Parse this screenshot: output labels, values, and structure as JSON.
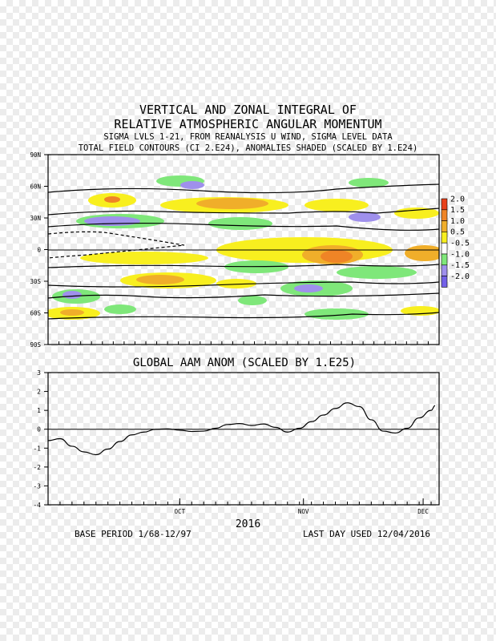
{
  "titles": {
    "line1": "VERTICAL AND ZONAL INTEGRAL OF",
    "line2": "RELATIVE ATMOSPHERIC ANGULAR MOMENTUM",
    "line3": "SIGMA LVLS 1-21, FROM REANALYSIS U WIND, SIGMA LEVEL DATA",
    "line4": "TOTAL FIELD CONTOURS (CI 2.E24),  ANOMALIES SHADED (SCALED BY 1.E24)"
  },
  "chart_data": [
    {
      "type": "heatmap",
      "y_ticks": [
        "90N",
        "60N",
        "30N",
        "0",
        "30S",
        "60S",
        "90S"
      ],
      "ylim": [
        -90,
        90
      ],
      "colorbar": {
        "labels": [
          "2.0",
          "1.5",
          "1.0",
          "0.5",
          "-0.5",
          "-1.0",
          "-1.5",
          "-2.0"
        ],
        "colors": [
          "#e8401a",
          "#ef8426",
          "#f0ae2a",
          "#f8ef1f",
          "#ffffff",
          "#7fe77a",
          "#9f90ec",
          "#7361e8"
        ]
      }
    },
    {
      "type": "line",
      "title": "GLOBAL AAM ANOM (SCALED BY 1.E25)",
      "xlabel": "2016",
      "ylim": [
        -4,
        3
      ],
      "y_ticks": [
        3,
        2,
        1,
        0,
        -1,
        -2,
        -3,
        -4
      ],
      "x_ticks": [
        "OCT",
        "NOV",
        "DEC"
      ],
      "x": [
        "2016-08-29",
        "2016-09-01",
        "2016-09-04",
        "2016-09-07",
        "2016-09-10",
        "2016-09-13",
        "2016-09-16",
        "2016-09-19",
        "2016-09-22",
        "2016-09-25",
        "2016-09-28",
        "2016-10-01",
        "2016-10-04",
        "2016-10-07",
        "2016-10-10",
        "2016-10-13",
        "2016-10-16",
        "2016-10-19",
        "2016-10-22",
        "2016-10-25",
        "2016-10-28",
        "2016-10-31",
        "2016-11-03",
        "2016-11-06",
        "2016-11-09",
        "2016-11-12",
        "2016-11-15",
        "2016-11-18",
        "2016-11-21",
        "2016-11-24",
        "2016-11-27",
        "2016-11-30",
        "2016-12-03",
        "2016-12-04"
      ],
      "y": [
        -0.6,
        -0.5,
        -0.9,
        -1.2,
        -1.35,
        -1.05,
        -0.65,
        -0.3,
        -0.15,
        0.0,
        0.02,
        -0.05,
        -0.12,
        -0.1,
        0.05,
        0.25,
        0.3,
        0.2,
        0.28,
        0.1,
        -0.15,
        0.05,
        0.4,
        0.75,
        1.1,
        1.4,
        1.2,
        0.5,
        -0.1,
        -0.2,
        0.05,
        0.6,
        1.0,
        1.25
      ]
    }
  ],
  "footer": {
    "year": "2016",
    "base_period": "BASE PERIOD  1/68-12/97",
    "last_day": "LAST DAY USED 12/04/2016"
  }
}
